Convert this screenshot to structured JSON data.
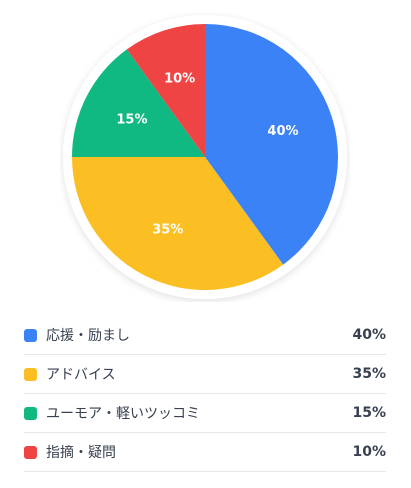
{
  "chart_data": {
    "type": "pie",
    "slices": [
      {
        "label": "応援・励まし",
        "value": 40,
        "value_text": "40%",
        "color": "#3b82f6"
      },
      {
        "label": "アドバイス",
        "value": 35,
        "value_text": "35%",
        "color": "#fbbf24"
      },
      {
        "label": "ユーモア・軽いツッコミ",
        "value": 15,
        "value_text": "15%",
        "color": "#10b981"
      },
      {
        "label": "指摘・疑問",
        "value": 10,
        "value_text": "10%",
        "color": "#ef4444"
      }
    ],
    "start_angle_deg": 0,
    "direction": "clockwise",
    "legend_position": "bottom",
    "grid": false
  },
  "legend": {
    "items": [
      {
        "label": "応援・励まし",
        "value": "40%",
        "color": "#3b82f6"
      },
      {
        "label": "アドバイス",
        "value": "35%",
        "color": "#fbbf24"
      },
      {
        "label": "ユーモア・軽いツッコミ",
        "value": "15%",
        "color": "#10b981"
      },
      {
        "label": "指摘・疑問",
        "value": "10%",
        "color": "#ef4444"
      }
    ]
  }
}
